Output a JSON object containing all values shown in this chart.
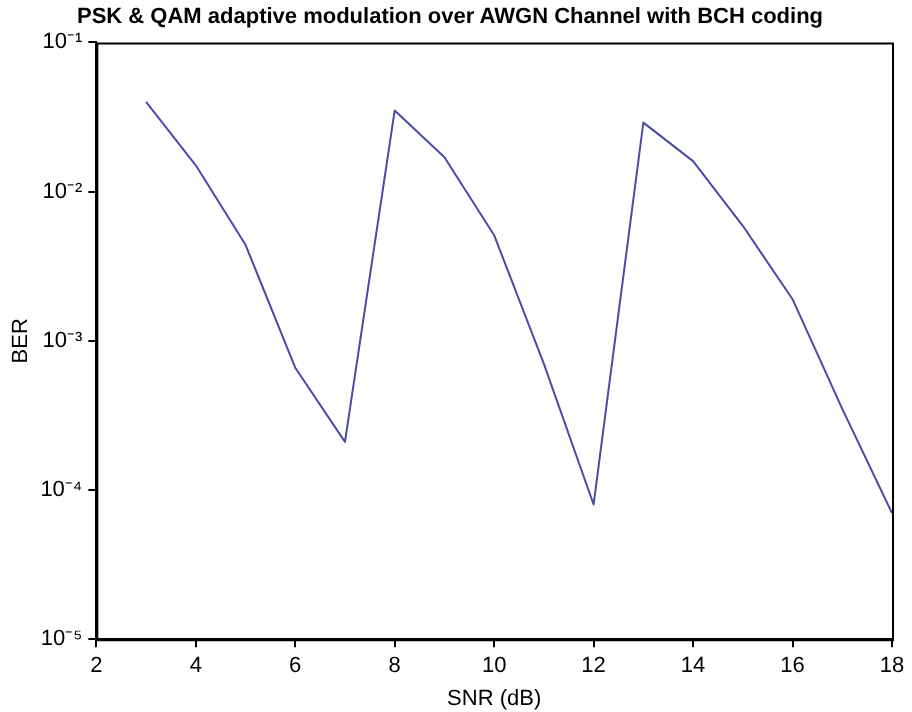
{
  "chart_data": {
    "type": "line",
    "title": "PSK & QAM adaptive modulation over AWGN Channel with BCH coding",
    "xlabel": "SNR (dB)",
    "ylabel": "BER",
    "x": [
      3,
      4,
      5,
      6,
      7,
      8,
      9,
      10,
      11,
      12,
      13,
      14,
      15,
      16,
      17,
      18
    ],
    "series": [
      {
        "color": "#4a4aa8",
        "values": [
          0.04,
          0.015,
          0.0044,
          0.00066,
          0.00021,
          0.035,
          0.017,
          0.0051,
          0.0007,
          8e-05,
          0.029,
          0.016,
          0.0059,
          0.0019,
          0.00035,
          7e-05
        ]
      }
    ],
    "log": "y",
    "xlim": [
      2,
      18
    ],
    "xticks": [
      2,
      4,
      6,
      8,
      10,
      12,
      14,
      16,
      18
    ],
    "ylim": [
      1e-05,
      0.1
    ],
    "yticks": [
      {
        "value": 1e-05,
        "label": "10⁻⁵"
      },
      {
        "value": 0.0001,
        "label": "10⁻⁴"
      },
      {
        "value": 0.001,
        "label": "10⁻³"
      },
      {
        "value": 0.01,
        "label": "10⁻²"
      },
      {
        "value": 0.1,
        "label": "10⁻¹"
      }
    ],
    "grid": false,
    "legend": false,
    "marker": "none",
    "line_style": "solid"
  }
}
